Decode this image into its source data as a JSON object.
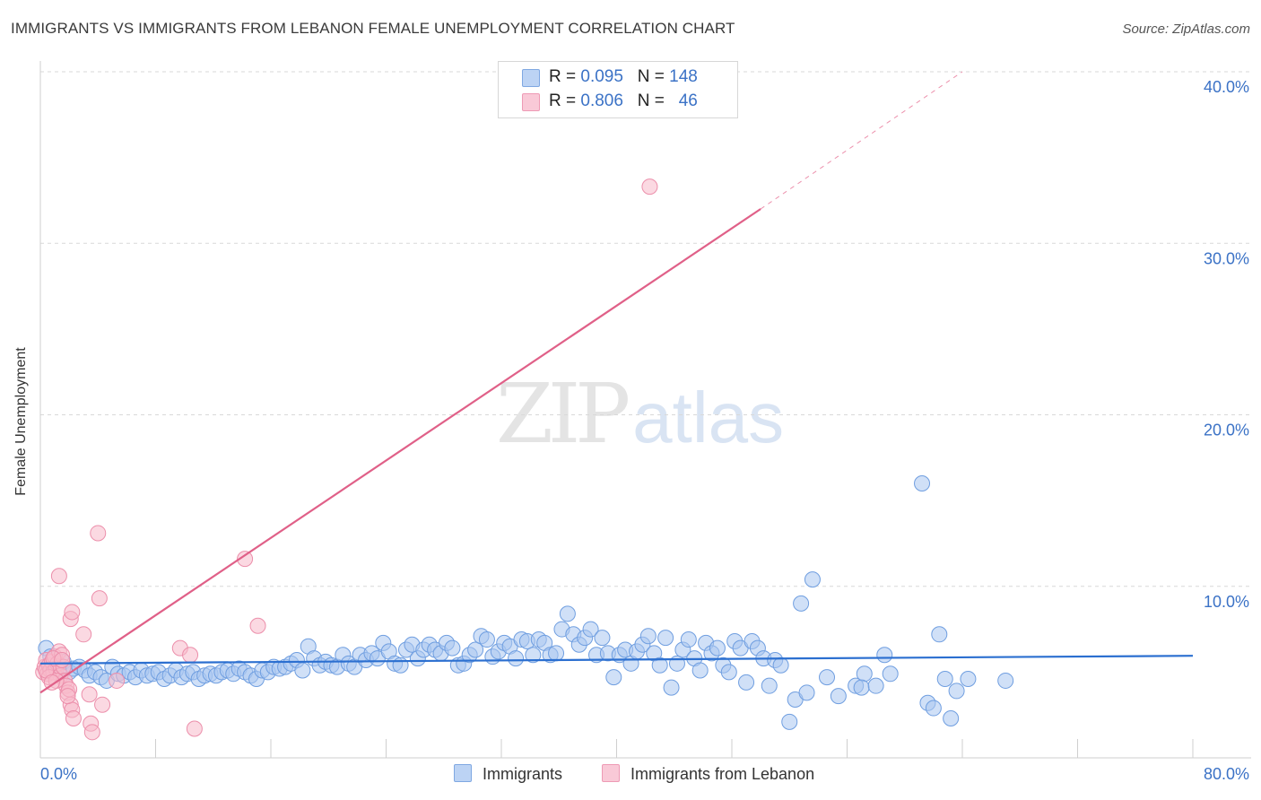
{
  "header": {
    "title": "IMMIGRANTS VS IMMIGRANTS FROM LEBANON FEMALE UNEMPLOYMENT CORRELATION CHART",
    "source": "Source: ZipAtlas.com"
  },
  "watermark": {
    "zip": "ZIP",
    "atlas": "atlas"
  },
  "colors": {
    "blue_fill": "#a9c6f0",
    "blue_stroke": "#6f9ee0",
    "blue_line": "#2b6fd0",
    "pink_fill": "#f7b9cb",
    "pink_stroke": "#ec8fab",
    "pink_line": "#e06088",
    "axis_text": "#3b72c6",
    "grid": "#d9d9d9"
  },
  "legend_top": {
    "rows": [
      {
        "r_label": "R = ",
        "r_value": "0.095",
        "n_label": "N = ",
        "n_value": "148"
      },
      {
        "r_label": "R = ",
        "r_value": "0.806",
        "n_label": "N = ",
        "n_value": "46"
      }
    ]
  },
  "legend_bottom": {
    "items": [
      "Immigrants",
      "Immigrants from Lebanon"
    ]
  },
  "chart_data": {
    "type": "scatter",
    "title": "IMMIGRANTS VS IMMIGRANTS FROM LEBANON FEMALE UNEMPLOYMENT CORRELATION CHART",
    "xlabel": "",
    "ylabel": "Female Unemployment",
    "xlim": [
      0,
      80
    ],
    "ylim": [
      0,
      40
    ],
    "x_tick_labels": [
      "0.0%",
      "80.0%"
    ],
    "y_ticks": [
      10,
      20,
      30,
      40
    ],
    "y_tick_labels": [
      "10.0%",
      "20.0%",
      "30.0%",
      "40.0%"
    ],
    "grid": true,
    "series": [
      {
        "name": "Immigrants",
        "R": 0.095,
        "N": 148,
        "trend": {
          "x": [
            0,
            80
          ],
          "y": [
            5.5,
            5.95
          ]
        },
        "points": [
          [
            0.4,
            6.4
          ],
          [
            0.7,
            5.9
          ],
          [
            1.0,
            5.4
          ],
          [
            1.3,
            5.1
          ],
          [
            1.6,
            5.6
          ],
          [
            2.0,
            5.0
          ],
          [
            2.3,
            5.2
          ],
          [
            2.7,
            5.3
          ],
          [
            3.1,
            5.1
          ],
          [
            3.4,
            4.8
          ],
          [
            3.8,
            5.0
          ],
          [
            4.2,
            4.7
          ],
          [
            4.6,
            4.5
          ],
          [
            5.0,
            5.3
          ],
          [
            5.4,
            4.9
          ],
          [
            5.8,
            4.8
          ],
          [
            6.2,
            5.0
          ],
          [
            6.6,
            4.7
          ],
          [
            7.0,
            5.1
          ],
          [
            7.4,
            4.8
          ],
          [
            7.8,
            4.9
          ],
          [
            8.2,
            5.0
          ],
          [
            8.6,
            4.6
          ],
          [
            9.0,
            4.8
          ],
          [
            9.4,
            5.1
          ],
          [
            9.8,
            4.7
          ],
          [
            10.2,
            4.9
          ],
          [
            10.6,
            5.0
          ],
          [
            11.0,
            4.6
          ],
          [
            11.4,
            4.8
          ],
          [
            11.8,
            4.9
          ],
          [
            12.2,
            4.8
          ],
          [
            12.6,
            5.0
          ],
          [
            13.0,
            5.1
          ],
          [
            13.4,
            4.9
          ],
          [
            13.8,
            5.2
          ],
          [
            14.2,
            5.0
          ],
          [
            14.6,
            4.8
          ],
          [
            15.0,
            4.6
          ],
          [
            15.4,
            5.1
          ],
          [
            15.8,
            5.0
          ],
          [
            16.2,
            5.3
          ],
          [
            16.6,
            5.2
          ],
          [
            17.0,
            5.3
          ],
          [
            17.4,
            5.5
          ],
          [
            17.8,
            5.7
          ],
          [
            18.2,
            5.1
          ],
          [
            18.6,
            6.5
          ],
          [
            19.0,
            5.8
          ],
          [
            19.4,
            5.4
          ],
          [
            19.8,
            5.6
          ],
          [
            20.2,
            5.4
          ],
          [
            20.6,
            5.3
          ],
          [
            21.0,
            6.0
          ],
          [
            21.4,
            5.5
          ],
          [
            21.8,
            5.3
          ],
          [
            22.2,
            6.0
          ],
          [
            22.6,
            5.7
          ],
          [
            23.0,
            6.1
          ],
          [
            23.4,
            5.8
          ],
          [
            23.8,
            6.7
          ],
          [
            24.2,
            6.2
          ],
          [
            24.6,
            5.5
          ],
          [
            25.0,
            5.4
          ],
          [
            25.4,
            6.3
          ],
          [
            25.8,
            6.6
          ],
          [
            26.2,
            5.8
          ],
          [
            26.6,
            6.3
          ],
          [
            27.0,
            6.6
          ],
          [
            27.4,
            6.3
          ],
          [
            27.8,
            6.1
          ],
          [
            28.2,
            6.7
          ],
          [
            28.6,
            6.4
          ],
          [
            29.0,
            5.4
          ],
          [
            29.4,
            5.5
          ],
          [
            29.8,
            6.0
          ],
          [
            30.2,
            6.3
          ],
          [
            30.6,
            7.1
          ],
          [
            31.0,
            6.9
          ],
          [
            31.4,
            5.9
          ],
          [
            31.8,
            6.2
          ],
          [
            32.2,
            6.7
          ],
          [
            32.6,
            6.5
          ],
          [
            33.0,
            5.8
          ],
          [
            33.4,
            6.9
          ],
          [
            33.8,
            6.8
          ],
          [
            34.2,
            6.0
          ],
          [
            34.6,
            6.9
          ],
          [
            35.0,
            6.7
          ],
          [
            35.4,
            6.0
          ],
          [
            35.8,
            6.1
          ],
          [
            36.2,
            7.5
          ],
          [
            36.6,
            8.4
          ],
          [
            37.0,
            7.2
          ],
          [
            37.4,
            6.6
          ],
          [
            37.8,
            7.0
          ],
          [
            38.2,
            7.5
          ],
          [
            38.6,
            6.0
          ],
          [
            39.0,
            7.0
          ],
          [
            39.4,
            6.1
          ],
          [
            39.8,
            4.7
          ],
          [
            40.2,
            6.0
          ],
          [
            40.6,
            6.3
          ],
          [
            41.0,
            5.5
          ],
          [
            41.4,
            6.2
          ],
          [
            41.8,
            6.6
          ],
          [
            42.2,
            7.1
          ],
          [
            42.6,
            6.1
          ],
          [
            43.0,
            5.4
          ],
          [
            43.4,
            7.0
          ],
          [
            43.8,
            4.1
          ],
          [
            44.2,
            5.5
          ],
          [
            44.6,
            6.3
          ],
          [
            45.0,
            6.9
          ],
          [
            45.4,
            5.8
          ],
          [
            45.8,
            5.1
          ],
          [
            46.2,
            6.7
          ],
          [
            46.6,
            6.1
          ],
          [
            47.0,
            6.4
          ],
          [
            47.4,
            5.4
          ],
          [
            47.8,
            5.0
          ],
          [
            48.2,
            6.8
          ],
          [
            48.6,
            6.4
          ],
          [
            49.0,
            4.4
          ],
          [
            49.4,
            6.8
          ],
          [
            49.8,
            6.4
          ],
          [
            50.2,
            5.8
          ],
          [
            50.6,
            4.2
          ],
          [
            51.0,
            5.7
          ],
          [
            51.4,
            5.4
          ],
          [
            52.0,
            2.1
          ],
          [
            52.4,
            3.4
          ],
          [
            52.8,
            9.0
          ],
          [
            53.2,
            3.8
          ],
          [
            53.6,
            10.4
          ],
          [
            54.6,
            4.7
          ],
          [
            55.4,
            3.6
          ],
          [
            56.6,
            4.2
          ],
          [
            57.2,
            4.9
          ],
          [
            57.0,
            4.1
          ],
          [
            58.0,
            4.2
          ],
          [
            58.6,
            6.0
          ],
          [
            59.0,
            4.9
          ],
          [
            61.2,
            16.0
          ],
          [
            61.6,
            3.2
          ],
          [
            62.0,
            2.9
          ],
          [
            62.4,
            7.2
          ],
          [
            62.8,
            4.6
          ],
          [
            63.2,
            2.3
          ],
          [
            63.6,
            3.9
          ],
          [
            64.4,
            4.6
          ],
          [
            67.0,
            4.5
          ]
        ]
      },
      {
        "name": "Immigrants from Lebanon",
        "R": 0.806,
        "N": 46,
        "trend": {
          "x": [
            0,
            50
          ],
          "y": [
            3.8,
            32.0
          ]
        },
        "trend_dashed": {
          "x": [
            50,
            64
          ],
          "y": [
            32.0,
            40.0
          ]
        },
        "points": [
          [
            0.2,
            5.0
          ],
          [
            0.3,
            5.3
          ],
          [
            0.4,
            5.7
          ],
          [
            0.5,
            4.9
          ],
          [
            0.6,
            5.4
          ],
          [
            0.7,
            5.1
          ],
          [
            0.8,
            5.6
          ],
          [
            0.9,
            5.0
          ],
          [
            1.0,
            5.9
          ],
          [
            1.1,
            5.2
          ],
          [
            1.2,
            5.5
          ],
          [
            1.3,
            6.2
          ],
          [
            1.4,
            4.8
          ],
          [
            1.5,
            6.0
          ],
          [
            1.6,
            5.3
          ],
          [
            1.7,
            4.5
          ],
          [
            1.8,
            4.2
          ],
          [
            1.9,
            3.8
          ],
          [
            2.0,
            4.0
          ],
          [
            2.1,
            3.1
          ],
          [
            2.2,
            2.8
          ],
          [
            2.3,
            2.3
          ],
          [
            1.3,
            10.6
          ],
          [
            2.1,
            8.1
          ],
          [
            2.2,
            8.5
          ],
          [
            3.0,
            7.2
          ],
          [
            3.4,
            3.7
          ],
          [
            3.5,
            2.0
          ],
          [
            4.0,
            13.1
          ],
          [
            4.1,
            9.3
          ],
          [
            4.3,
            3.1
          ],
          [
            5.3,
            4.5
          ],
          [
            9.7,
            6.4
          ],
          [
            10.4,
            6.0
          ],
          [
            10.7,
            1.7
          ],
          [
            14.2,
            11.6
          ],
          [
            15.1,
            7.7
          ],
          [
            42.3,
            33.3
          ],
          [
            0.6,
            4.7
          ],
          [
            0.9,
            5.8
          ],
          [
            1.1,
            4.5
          ],
          [
            1.5,
            5.7
          ],
          [
            0.4,
            5.1
          ],
          [
            0.8,
            4.4
          ],
          [
            1.9,
            3.6
          ],
          [
            3.6,
            1.5
          ]
        ]
      }
    ]
  }
}
